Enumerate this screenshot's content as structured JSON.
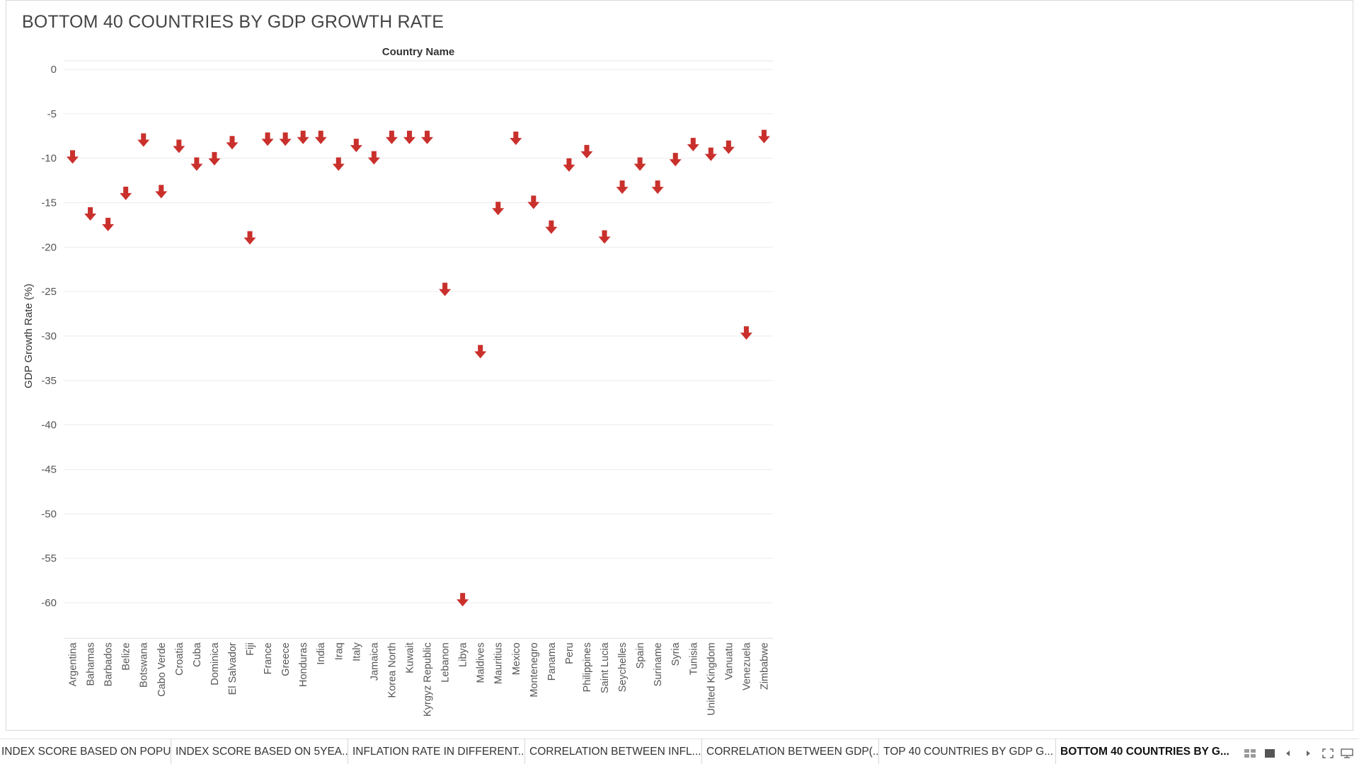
{
  "sheet": {
    "title": "BOTTOM 40 COUNTRIES BY GDP GROWTH RATE"
  },
  "chart_data": {
    "type": "scatter",
    "marker": "down-arrow",
    "marker_color": "#c9302c",
    "header_label": "Country Name",
    "ylabel": "GDP Growth Rate (%)",
    "ylim": [
      -64,
      1
    ],
    "yticks": [
      0,
      -5,
      -10,
      -15,
      -20,
      -25,
      -30,
      -35,
      -40,
      -45,
      -50,
      -55,
      -60
    ],
    "grid": true,
    "categories": [
      "Argentina",
      "Bahamas",
      "Barbados",
      "Belize",
      "Botswana",
      "Cabo Verde",
      "Croatia",
      "Cuba",
      "Dominica",
      "El Salvador",
      "Fiji",
      "France",
      "Greece",
      "Honduras",
      "India",
      "Iraq",
      "Italy",
      "Jamaica",
      "Korea North",
      "Kuwait",
      "Kyrgyz Republic",
      "Lebanon",
      "Libya",
      "Maldives",
      "Mauritius",
      "Mexico",
      "Montenegro",
      "Panama",
      "Peru",
      "Philippines",
      "Saint Lucia",
      "Seychelles",
      "Spain",
      "Suriname",
      "Syria",
      "Tunisia",
      "United Kingdom",
      "Vanuatu",
      "Venezuela",
      "Zimbabwe"
    ],
    "values": [
      -9.9,
      -16.3,
      -17.5,
      -14.0,
      -8.0,
      -13.8,
      -8.7,
      -10.7,
      -10.1,
      -8.3,
      -19.0,
      -7.9,
      -7.9,
      -7.7,
      -7.7,
      -10.7,
      -8.6,
      -10.0,
      -7.7,
      -7.7,
      -7.7,
      -24.8,
      -59.7,
      -31.8,
      -15.7,
      -7.8,
      -15.0,
      -17.8,
      -10.8,
      -9.3,
      -18.9,
      -13.3,
      -10.7,
      -13.3,
      -10.2,
      -8.5,
      -9.6,
      -8.8,
      -29.7,
      -7.6
    ]
  },
  "tabs": [
    {
      "label": "INDEX SCORE BASED ON POPU...",
      "active": false
    },
    {
      "label": "INDEX SCORE BASED ON 5YEA...",
      "active": false
    },
    {
      "label": "INFLATION RATE IN DIFFERENT...",
      "active": false
    },
    {
      "label": "CORRELATION BETWEEN INFL...",
      "active": false
    },
    {
      "label": "CORRELATION BETWEEN GDP(...",
      "active": false
    },
    {
      "label": "TOP 40 COUNTRIES BY GDP G...",
      "active": false
    },
    {
      "label": "BOTTOM 40 COUNTRIES BY G...",
      "active": true
    }
  ],
  "toolbar_icons": [
    "sheet-sorter-icon",
    "filmstrip-icon",
    "previous-sheet-icon",
    "next-sheet-icon",
    "fullscreen-icon",
    "presentation-mode-icon"
  ]
}
